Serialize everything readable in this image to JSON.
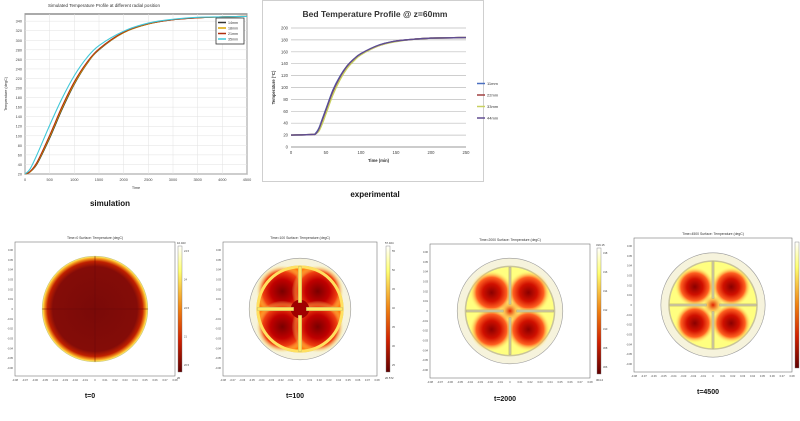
{
  "colors": {
    "grid": "#d8d8d8",
    "axis": "#555555",
    "hot": "#ffff60",
    "mid": "#e02000",
    "cold": "#6a0000",
    "ring": "#f6f3dc",
    "bar": "#c9c49a"
  },
  "chart_data": [
    {
      "type": "line",
      "title": "Simulated Temperature Profile at different radial position",
      "caption": "simulation",
      "xlabel": "Time",
      "ylabel": "Temperature (degC)",
      "xlim": [
        0,
        4500
      ],
      "ylim": [
        20,
        355
      ],
      "xticks": [
        0,
        500,
        1000,
        1500,
        2000,
        2500,
        3000,
        3500,
        4000,
        4500
      ],
      "yticks": [
        20,
        40,
        60,
        80,
        100,
        120,
        140,
        160,
        180,
        200,
        220,
        240,
        260,
        280,
        300,
        320,
        340
      ],
      "grid": true,
      "legend": "top-right",
      "x": [
        0,
        100,
        250,
        500,
        750,
        1000,
        1250,
        1500,
        2000,
        2500,
        3000,
        3500,
        4000,
        4500
      ],
      "series": [
        {
          "name": "14mm",
          "color": "#333333",
          "values": [
            20,
            24,
            42,
            95,
            155,
            208,
            250,
            280,
            316,
            334,
            343,
            347,
            349,
            350
          ]
        },
        {
          "name": "18mm",
          "color": "#d9a400",
          "values": [
            20,
            24,
            44,
            98,
            158,
            210,
            251,
            281,
            316,
            334,
            343,
            347,
            349,
            350
          ]
        },
        {
          "name": "21mm",
          "color": "#b03010",
          "values": [
            20,
            25,
            46,
            101,
            161,
            213,
            253,
            282,
            317,
            335,
            343,
            347,
            349,
            350
          ]
        },
        {
          "name": "35mm",
          "color": "#40c8d8",
          "values": [
            20,
            30,
            62,
            122,
            178,
            226,
            263,
            289,
            319,
            336,
            344,
            348,
            349,
            350
          ]
        }
      ]
    },
    {
      "type": "line",
      "title": "Bed Temperature Profile @ z=60mm",
      "caption": "experimental",
      "xlabel": "Time (min)",
      "ylabel": "Temperature (°C)",
      "xlim": [
        0,
        250
      ],
      "ylim": [
        0,
        200
      ],
      "xticks": [
        0,
        50,
        100,
        150,
        200,
        250
      ],
      "yticks": [
        0,
        20,
        40,
        60,
        80,
        100,
        120,
        140,
        160,
        180,
        200
      ],
      "grid": true,
      "legend": "right",
      "x": [
        0,
        30,
        35,
        40,
        45,
        50,
        60,
        70,
        80,
        90,
        100,
        125,
        150,
        175,
        200,
        250
      ],
      "series": [
        {
          "name": "11mm",
          "color": "#4a6fc0",
          "values": [
            20,
            21,
            23,
            32,
            48,
            64,
            96,
            119,
            136,
            148,
            157,
            171,
            178,
            181,
            183,
            184
          ]
        },
        {
          "name": "22mm",
          "color": "#a04040",
          "values": [
            20,
            21,
            22,
            30,
            45,
            61,
            93,
            117,
            135,
            147,
            156,
            170,
            178,
            181,
            183,
            184
          ]
        },
        {
          "name": "33mm",
          "color": "#c8d060",
          "values": [
            20,
            21,
            22,
            27,
            40,
            56,
            88,
            113,
            132,
            145,
            155,
            170,
            177,
            181,
            183,
            184
          ]
        },
        {
          "name": "44mm",
          "color": "#604c90",
          "values": [
            20,
            21,
            22,
            31,
            47,
            63,
            95,
            118,
            136,
            148,
            157,
            171,
            178,
            181,
            183,
            184
          ]
        }
      ]
    },
    {
      "type": "heatmap",
      "panels": [
        {
          "title": "Time=0  Surface: Temperature (degC)",
          "label": "t=0",
          "cb_max": "10.023",
          "cb_min": "20",
          "cb_ticks": [
            "24.5",
            "24",
            "22.5",
            "21",
            "20.5"
          ],
          "state": 0
        },
        {
          "title": "Time=100  Surface: Temperature (degC)",
          "label": "t=100",
          "cb_max": "57.404",
          "cb_min": "20.572",
          "cb_ticks": [
            "55",
            "50",
            "45",
            "40",
            "35",
            "30",
            "25"
          ],
          "state": 1
        },
        {
          "title": "Time=2000  Surface: Temperature (degC)",
          "label": "t=2000",
          "cb_max": "319.15",
          "cb_min": "304.2",
          "cb_ticks": [
            "318",
            "316",
            "314",
            "312",
            "310",
            "308",
            "306"
          ],
          "state": 2
        },
        {
          "title": "Time=4500  Surface: Temperature (degC)",
          "label": "t=4500",
          "cb_max": "",
          "cb_min": "",
          "cb_ticks": [],
          "state": 3
        }
      ],
      "axis_ticks": [
        "-0.08",
        "-0.07",
        "-0.06",
        "-0.05",
        "-0.04",
        "-0.03",
        "-0.02",
        "-0.01",
        "0",
        "0.01",
        "0.02",
        "0.03",
        "0.04",
        "0.05",
        "0.06",
        "0.07",
        "0.08"
      ],
      "y_ticks": [
        "0.06",
        "0.05",
        "0.04",
        "0.03",
        "0.02",
        "0.01",
        "0",
        "-0.01",
        "-0.02",
        "-0.03",
        "-0.04",
        "-0.05",
        "-0.06"
      ]
    }
  ]
}
